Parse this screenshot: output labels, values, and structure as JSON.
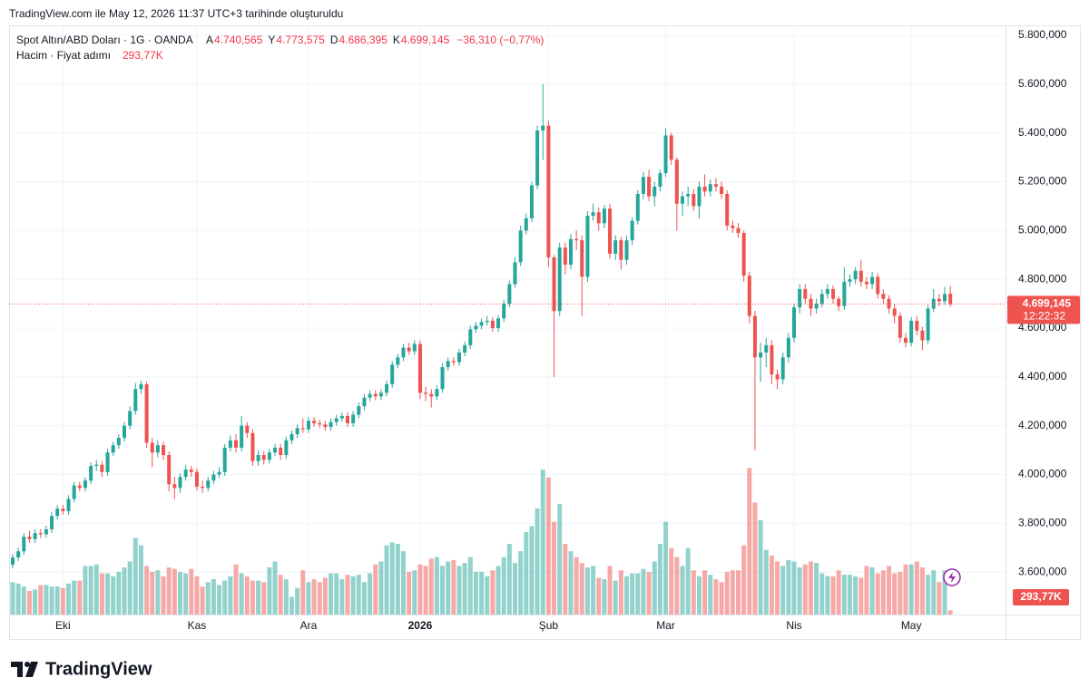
{
  "header": {
    "caption": "TradingView.com ile May 12, 2026 11:37 UTC+3 tarihinde oluşturuldu",
    "symbol": "Spot Altın/ABD Doları · 1G · OANDA",
    "ohlc": [
      {
        "key": "A",
        "value": "4.740,565"
      },
      {
        "key": "Y",
        "value": "4.773,575"
      },
      {
        "key": "D",
        "value": "4.686,395"
      },
      {
        "key": "K",
        "value": "4.699,145"
      }
    ],
    "change": "−36,310 (−0,77%)",
    "volume_title": "Hacim · Fiyat adımı",
    "volume_value": "293,77K",
    "last_price": "4.699,145",
    "countdown": "12:22:32",
    "brand": "TradingView"
  },
  "chart_data": {
    "type": "candlestick",
    "categories": [
      null,
      null,
      null,
      null,
      null,
      null,
      null,
      null,
      null,
      "Eki",
      null,
      null,
      null,
      null,
      null,
      null,
      null,
      null,
      null,
      null,
      null,
      null,
      null,
      null,
      null,
      null,
      null,
      null,
      null,
      null,
      null,
      null,
      null,
      "Kas",
      null,
      null,
      null,
      null,
      null,
      null,
      null,
      null,
      null,
      null,
      null,
      null,
      null,
      null,
      null,
      null,
      null,
      null,
      null,
      "Ara",
      null,
      null,
      null,
      null,
      null,
      null,
      null,
      null,
      null,
      null,
      null,
      null,
      null,
      null,
      null,
      null,
      null,
      null,
      null,
      "2026",
      null,
      null,
      null,
      null,
      null,
      null,
      null,
      null,
      null,
      null,
      null,
      null,
      null,
      null,
      null,
      null,
      null,
      null,
      null,
      null,
      null,
      null,
      "Şub",
      null,
      null,
      null,
      null,
      null,
      null,
      null,
      null,
      null,
      null,
      null,
      null,
      null,
      null,
      null,
      null,
      null,
      null,
      null,
      null,
      "Mar",
      null,
      null,
      null,
      null,
      null,
      null,
      null,
      null,
      null,
      null,
      null,
      null,
      null,
      null,
      null,
      null,
      null,
      null,
      null,
      null,
      null,
      null,
      "Nis",
      null,
      null,
      null,
      null,
      null,
      null,
      null,
      null,
      null,
      null,
      null,
      null,
      null,
      null,
      null,
      null,
      null,
      null,
      null,
      null,
      "May",
      null,
      null,
      null,
      null,
      null,
      null,
      null
    ],
    "open": [
      3630,
      3660,
      3685,
      3745,
      3735,
      3760,
      3755,
      3775,
      3830,
      3860,
      3850,
      3900,
      3955,
      3945,
      3975,
      4035,
      4040,
      4010,
      4090,
      4120,
      4150,
      4200,
      4260,
      4350,
      4370,
      4130,
      4090,
      4120,
      4080,
      3960,
      3945,
      3990,
      4020,
      4010,
      3950,
      3945,
      3975,
      4000,
      4010,
      4110,
      4140,
      4110,
      4200,
      4170,
      4055,
      4080,
      4060,
      4090,
      4110,
      4080,
      4140,
      4165,
      4190,
      4185,
      4220,
      4210,
      4205,
      4195,
      4215,
      4230,
      4240,
      4210,
      4245,
      4280,
      4315,
      4330,
      4320,
      4335,
      4370,
      4450,
      4480,
      4520,
      4505,
      4535,
      4335,
      4330,
      4320,
      4350,
      4440,
      4465,
      4460,
      4500,
      4530,
      4595,
      4610,
      4625,
      4630,
      4600,
      4640,
      4700,
      4780,
      4870,
      5000,
      5050,
      5185,
      5410,
      5430,
      4890,
      4670,
      4930,
      4860,
      4965,
      4960,
      4810,
      5060,
      5075,
      5030,
      5090,
      4905,
      4960,
      4880,
      4960,
      5040,
      5150,
      5220,
      5140,
      5180,
      5235,
      5390,
      5290,
      5110,
      5140,
      5150,
      5100,
      5180,
      5160,
      5190,
      5180,
      5150,
      5020,
      5010,
      4990,
      4815,
      4650,
      4480,
      4500,
      4530,
      4410,
      4390,
      4480,
      4560,
      4685,
      4760,
      4720,
      4680,
      4700,
      4740,
      4760,
      4720,
      4690,
      4790,
      4800,
      4835,
      4790,
      4780,
      4810,
      4740,
      4720,
      4680,
      4650,
      4560,
      4540,
      4630,
      4590,
      4550,
      4680,
      4720,
      4710,
      4740.565
    ],
    "high": [
      3675,
      3700,
      3760,
      3770,
      3775,
      3775,
      3790,
      3845,
      3875,
      3875,
      3915,
      3970,
      3970,
      3990,
      4050,
      4060,
      4055,
      4105,
      4135,
      4165,
      4215,
      4280,
      4375,
      4385,
      4380,
      4150,
      4140,
      4135,
      4095,
      3990,
      4005,
      4040,
      4035,
      4025,
      3975,
      3990,
      4015,
      4030,
      4125,
      4160,
      4165,
      4240,
      4215,
      4185,
      4100,
      4095,
      4105,
      4125,
      4125,
      4155,
      4180,
      4205,
      4230,
      4235,
      4235,
      4225,
      4220,
      4230,
      4245,
      4255,
      4255,
      4260,
      4295,
      4330,
      4345,
      4345,
      4350,
      4385,
      4465,
      4495,
      4535,
      4540,
      4550,
      4550,
      4360,
      4350,
      4365,
      4455,
      4480,
      4480,
      4515,
      4545,
      4610,
      4625,
      4640,
      4650,
      4645,
      4655,
      4715,
      4795,
      4890,
      5020,
      5070,
      5200,
      5430,
      5600,
      5450,
      4900,
      4950,
      4950,
      4985,
      5000,
      4980,
      5080,
      5110,
      5095,
      5105,
      5110,
      4980,
      4975,
      4980,
      5055,
      5165,
      5240,
      5250,
      5200,
      5250,
      5420,
      5400,
      5300,
      5160,
      5180,
      5170,
      5200,
      5230,
      5210,
      5215,
      5200,
      5165,
      5040,
      5030,
      5000,
      4830,
      4670,
      4540,
      4560,
      4550,
      4430,
      4500,
      4580,
      4700,
      4780,
      4780,
      4740,
      4720,
      4760,
      4780,
      4775,
      4730,
      4850,
      4820,
      4850,
      4880,
      4810,
      4830,
      4825,
      4760,
      4735,
      4700,
      4665,
      4580,
      4645,
      4650,
      4605,
      4695,
      4760,
      4740,
      4770,
      4773.575
    ],
    "low": [
      3615,
      3645,
      3670,
      3720,
      3720,
      3740,
      3740,
      3760,
      3815,
      3835,
      3835,
      3885,
      3930,
      3930,
      3960,
      4015,
      3990,
      3995,
      4075,
      4105,
      4135,
      4185,
      4245,
      4330,
      4110,
      4030,
      4070,
      4060,
      3930,
      3900,
      3925,
      3975,
      3990,
      3935,
      3925,
      3930,
      3960,
      3985,
      3995,
      4095,
      4090,
      4095,
      4150,
      4035,
      4035,
      4040,
      4045,
      4075,
      4060,
      4065,
      4125,
      4150,
      4170,
      4170,
      4195,
      4190,
      4180,
      4180,
      4200,
      4215,
      4195,
      4195,
      4230,
      4265,
      4300,
      4305,
      4305,
      4320,
      4355,
      4435,
      4465,
      4490,
      4490,
      4310,
      4300,
      4275,
      4305,
      4335,
      4425,
      4445,
      4445,
      4485,
      4515,
      4580,
      4595,
      4610,
      4585,
      4585,
      4625,
      4685,
      4765,
      4855,
      4985,
      5035,
      5170,
      5290,
      4850,
      4400,
      4650,
      4820,
      4840,
      4920,
      4650,
      4790,
      5040,
      5000,
      5010,
      4885,
      4880,
      4840,
      4860,
      4940,
      5025,
      5130,
      5120,
      5100,
      5160,
      5220,
      5270,
      5000,
      5060,
      5100,
      5080,
      5050,
      5140,
      5140,
      5160,
      5130,
      5000,
      4990,
      4970,
      4790,
      4620,
      4100,
      4380,
      4440,
      4370,
      4350,
      4370,
      4460,
      4540,
      4660,
      4700,
      4650,
      4660,
      4685,
      4720,
      4700,
      4670,
      4675,
      4770,
      4780,
      4770,
      4760,
      4760,
      4720,
      4700,
      4660,
      4620,
      4540,
      4520,
      4525,
      4570,
      4510,
      4535,
      4665,
      4690,
      4695,
      4686.395
    ],
    "close": [
      3660,
      3685,
      3745,
      3735,
      3760,
      3755,
      3775,
      3830,
      3860,
      3850,
      3900,
      3955,
      3945,
      3975,
      4035,
      4040,
      4010,
      4090,
      4120,
      4150,
      4200,
      4260,
      4350,
      4370,
      4130,
      4090,
      4120,
      4080,
      3960,
      3945,
      3990,
      4020,
      4010,
      3950,
      3945,
      3975,
      4000,
      4010,
      4110,
      4140,
      4110,
      4200,
      4170,
      4055,
      4080,
      4060,
      4090,
      4110,
      4080,
      4140,
      4165,
      4190,
      4185,
      4220,
      4210,
      4205,
      4195,
      4215,
      4230,
      4240,
      4210,
      4245,
      4280,
      4315,
      4330,
      4320,
      4335,
      4370,
      4450,
      4480,
      4520,
      4505,
      4535,
      4335,
      4330,
      4320,
      4350,
      4440,
      4465,
      4460,
      4500,
      4530,
      4595,
      4610,
      4625,
      4630,
      4600,
      4640,
      4700,
      4780,
      4870,
      5000,
      5050,
      5185,
      5410,
      5430,
      4890,
      4670,
      4930,
      4860,
      4965,
      4960,
      4810,
      5060,
      5075,
      5030,
      5090,
      4905,
      4960,
      4880,
      4960,
      5040,
      5150,
      5220,
      5140,
      5180,
      5235,
      5390,
      5290,
      5110,
      5140,
      5150,
      5100,
      5180,
      5160,
      5190,
      5180,
      5150,
      5020,
      5010,
      4990,
      4815,
      4650,
      4480,
      4500,
      4530,
      4410,
      4390,
      4480,
      4560,
      4685,
      4760,
      4720,
      4680,
      4700,
      4740,
      4760,
      4720,
      4690,
      4790,
      4800,
      4835,
      4790,
      4780,
      4810,
      4740,
      4720,
      4680,
      4650,
      4560,
      4540,
      4630,
      4590,
      4550,
      4680,
      4720,
      4710,
      4740,
      4699.145
    ],
    "volume": [
      2200,
      2100,
      1900,
      1600,
      1700,
      2000,
      2000,
      1900,
      1900,
      1800,
      2100,
      2300,
      2300,
      3300,
      3300,
      3400,
      2800,
      2800,
      2600,
      2900,
      3200,
      3600,
      5200,
      4700,
      3300,
      2900,
      3000,
      2600,
      3200,
      3100,
      2900,
      2800,
      3100,
      2600,
      1900,
      2200,
      2400,
      2000,
      2300,
      2600,
      3400,
      2800,
      2600,
      2300,
      2300,
      2200,
      3200,
      3600,
      2700,
      2400,
      1200,
      1800,
      3000,
      2200,
      2400,
      2200,
      2500,
      2800,
      2800,
      2400,
      2700,
      2600,
      2700,
      2200,
      2800,
      3400,
      3600,
      4700,
      4900,
      4800,
      4300,
      2900,
      3000,
      3400,
      3300,
      3800,
      3900,
      3300,
      3600,
      3700,
      3300,
      3500,
      3900,
      2900,
      2900,
      2600,
      3000,
      3300,
      3900,
      4800,
      3500,
      4300,
      5600,
      6000,
      7200,
      9840,
      9300,
      6300,
      7500,
      4800,
      4300,
      3900,
      3500,
      3200,
      3300,
      2500,
      2400,
      3300,
      2300,
      3000,
      2600,
      2800,
      2800,
      3100,
      2900,
      3600,
      4800,
      6300,
      4500,
      3900,
      3300,
      4500,
      3000,
      2600,
      3000,
      2700,
      2400,
      2200,
      2900,
      3000,
      3000,
      4700,
      9960,
      7600,
      6400,
      4400,
      4000,
      3600,
      3300,
      3700,
      3600,
      3200,
      3400,
      3600,
      3500,
      2800,
      2600,
      2600,
      3000,
      2700,
      2700,
      2600,
      2500,
      3300,
      3200,
      2800,
      3000,
      3300,
      2800,
      2900,
      3400,
      3400,
      3600,
      3200,
      2700,
      3000,
      2200,
      3000,
      293.77
    ],
    "ylim": [
      3426,
      5841
    ],
    "yticks": [
      {
        "value": 3600,
        "label": "3.600,000"
      },
      {
        "value": 3800,
        "label": "3.800,000"
      },
      {
        "value": 4000,
        "label": "4.000,000"
      },
      {
        "value": 4200,
        "label": "4.200,000"
      },
      {
        "value": 4400,
        "label": "4.400,000"
      },
      {
        "value": 4600,
        "label": "4.600,000"
      },
      {
        "value": 4800,
        "label": "4.800,000"
      },
      {
        "value": 5000,
        "label": "5.000,000"
      },
      {
        "value": 5200,
        "label": "5.200,000"
      },
      {
        "value": 5400,
        "label": "5.400,000"
      },
      {
        "value": 5600,
        "label": "5.600,000"
      },
      {
        "value": 5800,
        "label": "5.800,000"
      }
    ],
    "y2lim": [
      0,
      40000
    ],
    "grid": true,
    "up_color": "#26a69a",
    "down_color": "#ef5350"
  }
}
